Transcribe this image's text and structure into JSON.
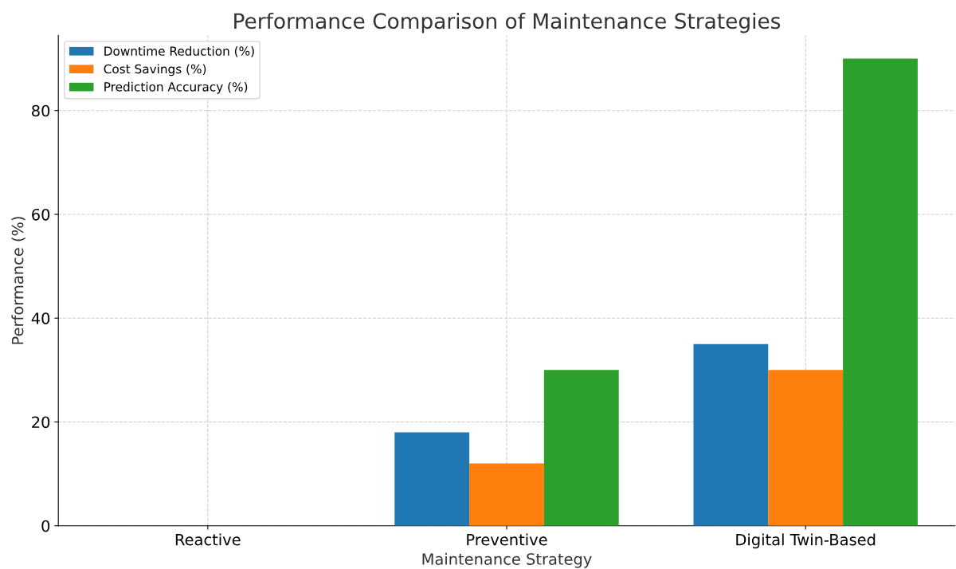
{
  "chart_data": {
    "type": "bar",
    "title": "Performance Comparison of Maintenance Strategies",
    "xlabel": "Maintenance Strategy",
    "ylabel": "Performance (%)",
    "categories": [
      "Reactive",
      "Preventive",
      "Digital Twin-Based"
    ],
    "series": [
      {
        "name": "Downtime Reduction (%)",
        "color": "#1f77b4",
        "values": [
          0,
          18,
          35
        ]
      },
      {
        "name": "Cost Savings (%)",
        "color": "#ff7f0e",
        "values": [
          0,
          12,
          30
        ]
      },
      {
        "name": "Prediction Accuracy (%)",
        "color": "#2ca02c",
        "values": [
          0,
          30,
          90
        ]
      }
    ],
    "ylim": [
      0,
      94.5
    ],
    "yticks": [
      0,
      20,
      40,
      60,
      80
    ],
    "grid": true,
    "legend": "top left"
  }
}
